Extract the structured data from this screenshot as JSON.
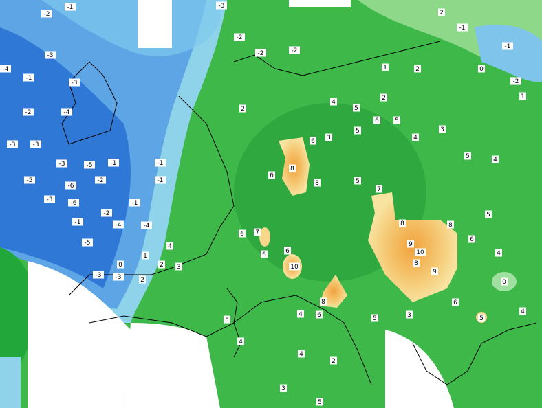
{
  "map": {
    "labels": [
      -2,
      -1,
      -3,
      -4,
      -1,
      -3,
      -2,
      -4,
      -3,
      -3,
      -3,
      -5,
      -1,
      -5,
      -6,
      -2,
      -1,
      -1,
      -3,
      -6,
      -2,
      -1,
      -1,
      -4,
      -4,
      -5,
      0,
      -3,
      -3,
      2,
      2,
      3,
      4,
      1,
      2,
      4,
      5,
      2,
      6,
      5,
      5,
      6,
      3,
      4,
      3,
      5,
      4,
      6,
      8,
      8,
      5,
      7,
      8,
      9,
      10,
      8,
      9,
      8,
      6,
      5,
      4,
      0,
      10,
      8,
      6,
      6,
      6,
      7,
      5,
      4,
      6,
      5,
      3,
      6,
      5,
      4,
      4,
      4,
      2,
      3,
      5,
      -2,
      1,
      -1,
      -1,
      0,
      -2,
      -2,
      -2,
      -3,
      1,
      2,
      2
    ]
  }
}
